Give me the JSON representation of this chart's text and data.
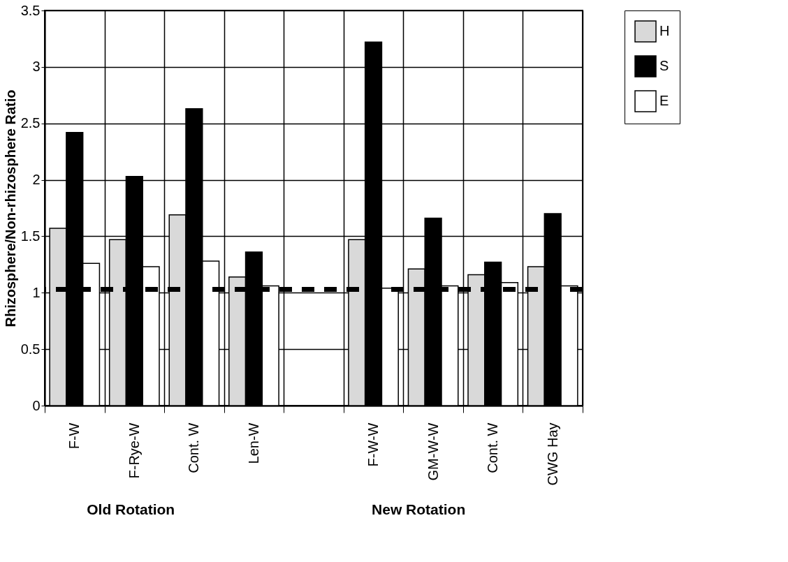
{
  "chart_data": {
    "type": "bar",
    "ylabel": "Rhizosphere/Non-rhizosphere Ratio",
    "categories": [
      "F-W",
      "F-Rye-W",
      "Cont. W",
      "Len-W",
      null,
      "F-W-W",
      "GM-W-W",
      "Cont. W",
      "CWG Hay"
    ],
    "series": [
      {
        "name": "H",
        "color": "#d9d9d9",
        "values": [
          1.57,
          1.47,
          1.69,
          1.14,
          null,
          1.47,
          1.21,
          1.16,
          1.23
        ]
      },
      {
        "name": "S",
        "color": "#000000",
        "values": [
          2.42,
          2.03,
          2.63,
          1.36,
          null,
          3.22,
          1.66,
          1.27,
          1.7
        ]
      },
      {
        "name": "E",
        "color": "#ffffff",
        "values": [
          1.26,
          1.23,
          1.28,
          1.06,
          null,
          1.04,
          1.06,
          1.09,
          1.06
        ]
      }
    ],
    "ylim": [
      0,
      3.5
    ],
    "yticks": [
      0,
      0.5,
      1,
      1.5,
      2,
      2.5,
      3,
      3.5
    ],
    "ref_lines": [
      {
        "axis": "y",
        "value": 1.03,
        "label": null,
        "color": "#000000",
        "line_style": "dashed"
      }
    ],
    "annotations": [
      "Old Rotation",
      "New Rotation"
    ],
    "grid": true,
    "legend": "top right"
  }
}
